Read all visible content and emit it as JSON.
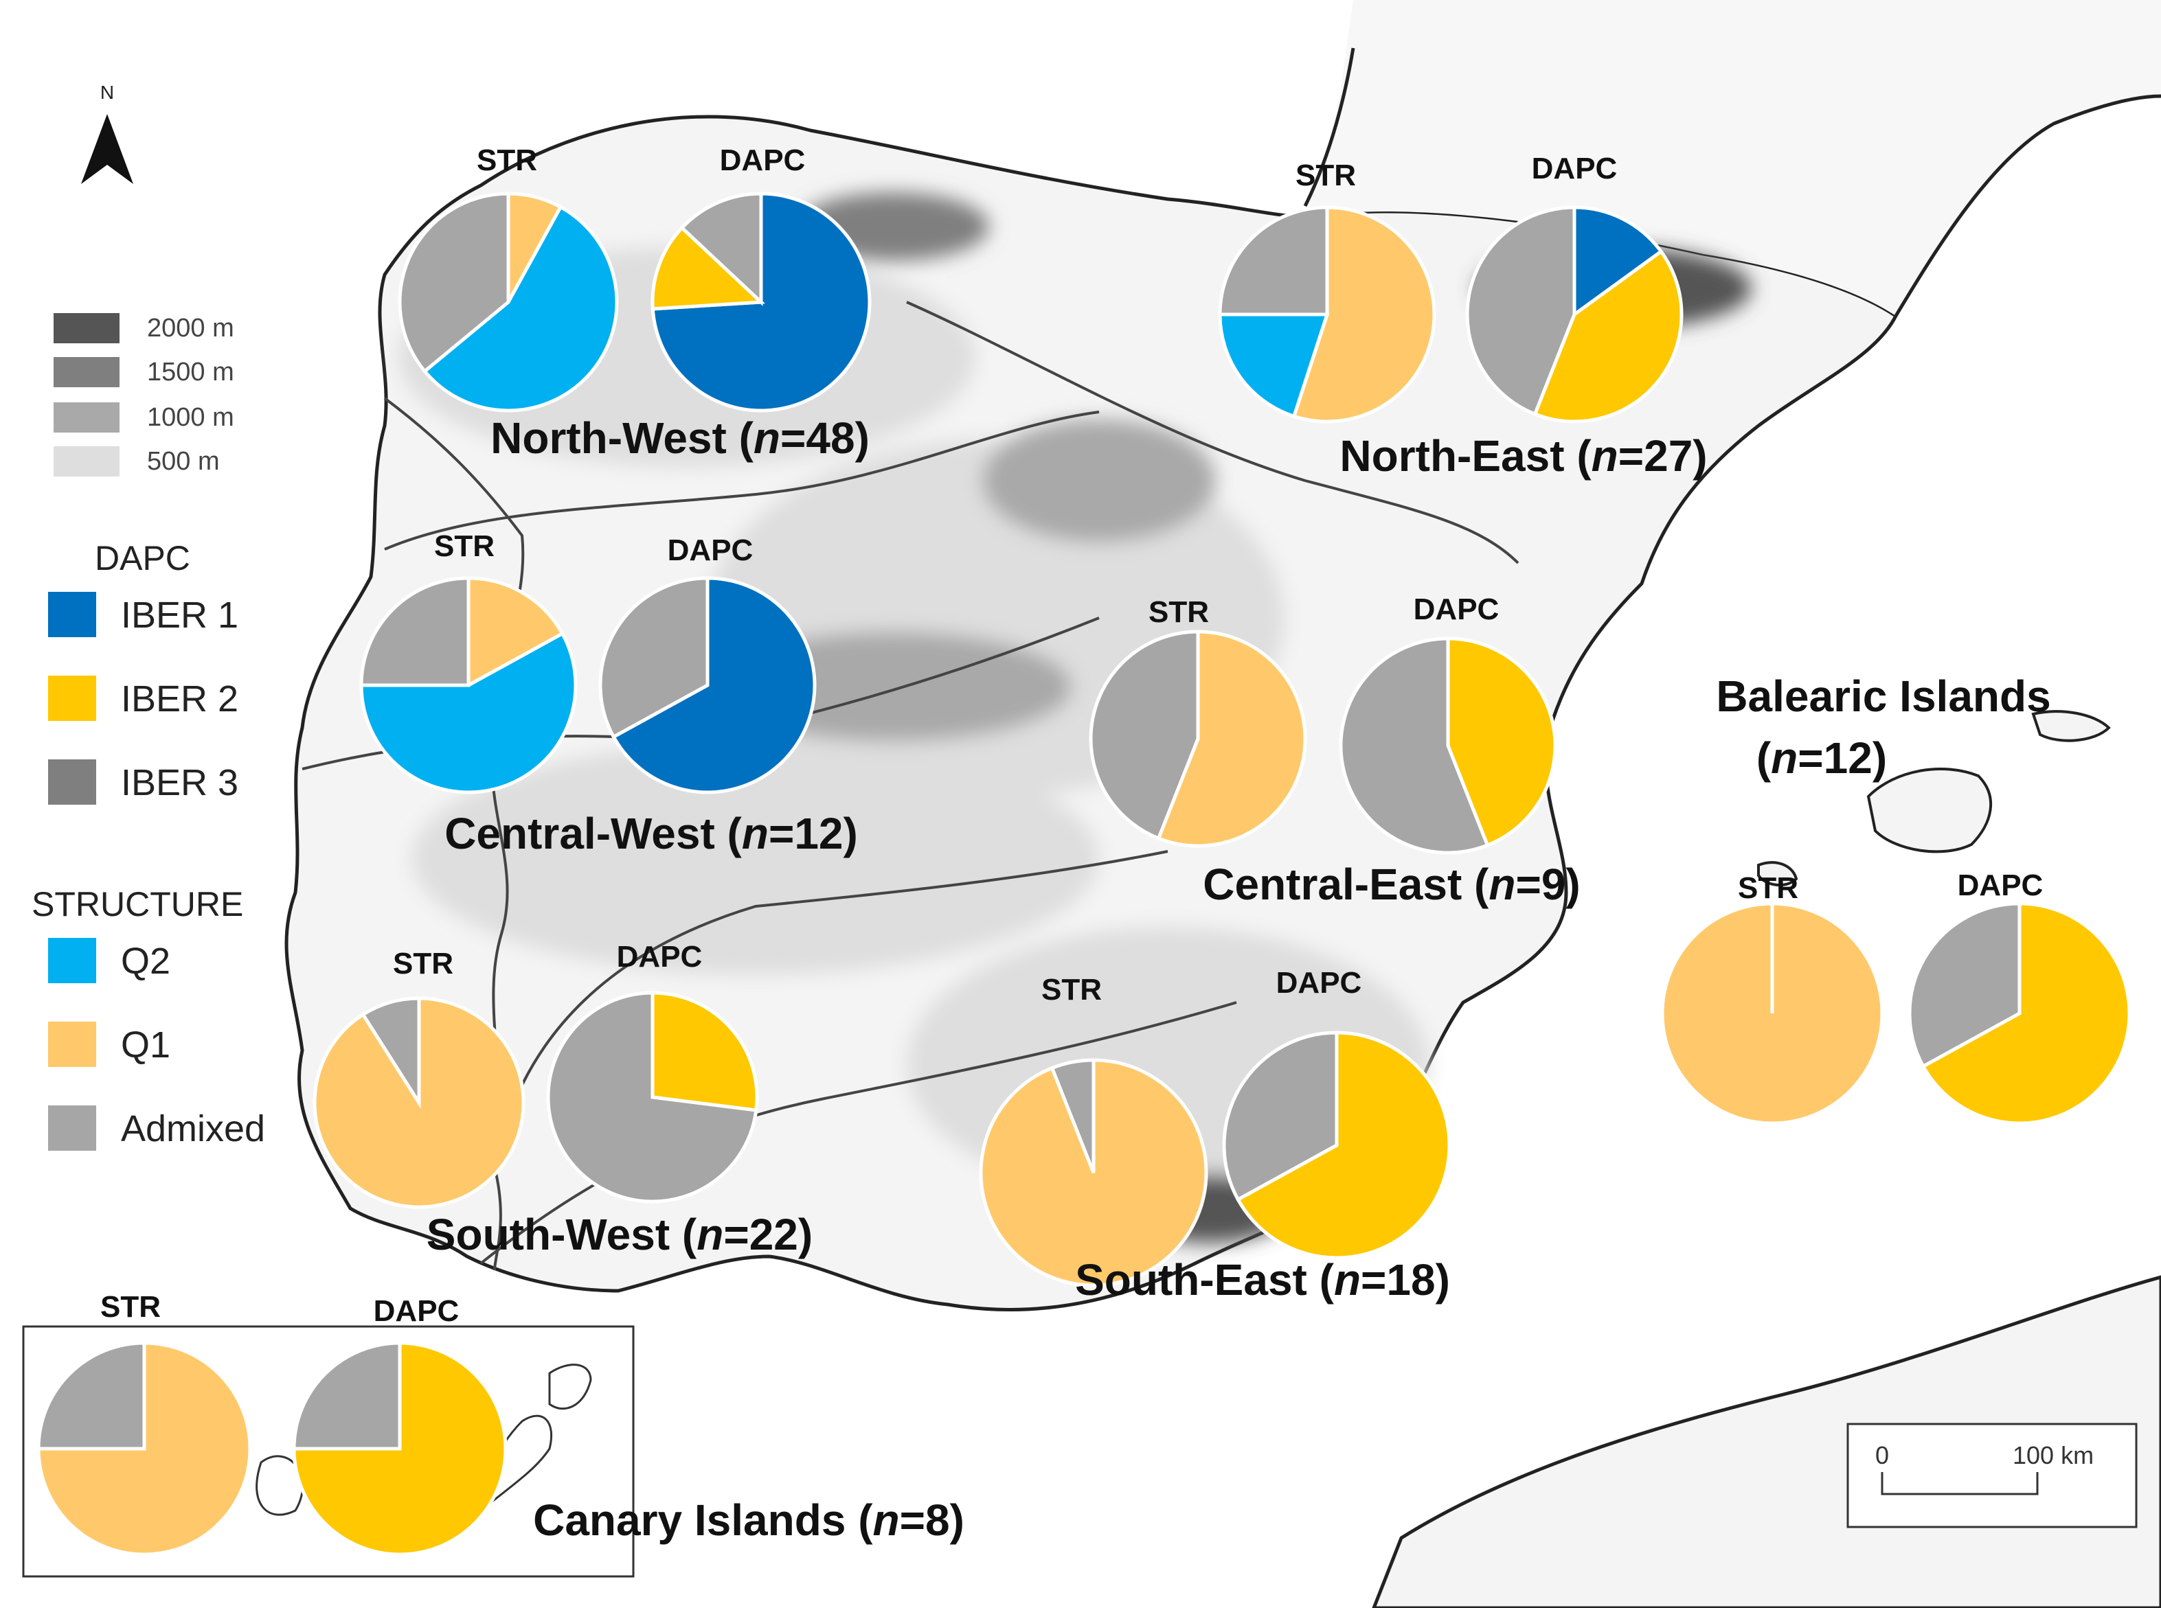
{
  "colors": {
    "IBER 1": "#0070C0",
    "IBER 2": "#FFC800",
    "IBER 3": "#7F7F7F",
    "Q2": "#00B0F0",
    "Q1": "#FFC96B",
    "Admixed": "#A6A6A6",
    "elev_2000": "#555555",
    "elev_1500": "#7F7F7F",
    "elev_1000": "#A9A9A9",
    "elev_500": "#DEDEDE"
  },
  "north_arrow": {
    "label": "N",
    "icon": "north-arrow-icon"
  },
  "legend": {
    "elevation": [
      "2000 m",
      "1500 m",
      "1000 m",
      "500 m"
    ],
    "dapc_title": "DAPC",
    "dapc_items": [
      "IBER 1",
      "IBER 2",
      "IBER 3"
    ],
    "structure_title": "STRUCTURE",
    "structure_items": [
      "Q2",
      "Q1",
      "Admixed"
    ]
  },
  "scale_bar": {
    "start": "0",
    "end": "100 km"
  },
  "pie_labels": {
    "str": "STR",
    "dapc": "DAPC"
  },
  "chart_data": {
    "type": "pie",
    "note_order": "slices listed clockwise from 12 o'clock",
    "regions": [
      {
        "name": "North-West",
        "n": "48",
        "str": [
          {
            "k": "Q1",
            "v": 0.08
          },
          {
            "k": "Q2",
            "v": 0.56
          },
          {
            "k": "Admixed",
            "v": 0.36
          }
        ],
        "dapc": [
          {
            "k": "IBER 1",
            "v": 0.74
          },
          {
            "k": "IBER 2",
            "v": 0.13
          },
          {
            "k": "Admixed",
            "v": 0.13
          }
        ]
      },
      {
        "name": "North-East",
        "n": "27",
        "str": [
          {
            "k": "Q1",
            "v": 0.55
          },
          {
            "k": "Q2",
            "v": 0.2
          },
          {
            "k": "Admixed",
            "v": 0.25
          }
        ],
        "dapc": [
          {
            "k": "IBER 1",
            "v": 0.15
          },
          {
            "k": "IBER 2",
            "v": 0.41
          },
          {
            "k": "Admixed",
            "v": 0.44
          }
        ]
      },
      {
        "name": "Central-West",
        "n": "12",
        "str": [
          {
            "k": "Q1",
            "v": 0.17
          },
          {
            "k": "Q2",
            "v": 0.58
          },
          {
            "k": "Admixed",
            "v": 0.25
          }
        ],
        "dapc": [
          {
            "k": "IBER 1",
            "v": 0.67
          },
          {
            "k": "Admixed",
            "v": 0.33
          }
        ]
      },
      {
        "name": "Central-East",
        "n": "9",
        "str": [
          {
            "k": "Q1",
            "v": 0.56
          },
          {
            "k": "Admixed",
            "v": 0.44
          }
        ],
        "dapc": [
          {
            "k": "IBER 2",
            "v": 0.44
          },
          {
            "k": "Admixed",
            "v": 0.56
          }
        ]
      },
      {
        "name": "South-West",
        "n": "22",
        "str": [
          {
            "k": "Q1",
            "v": 0.91
          },
          {
            "k": "Admixed",
            "v": 0.09
          }
        ],
        "dapc": [
          {
            "k": "IBER 2",
            "v": 0.27
          },
          {
            "k": "Admixed",
            "v": 0.73
          }
        ]
      },
      {
        "name": "South-East",
        "n": "18",
        "str": [
          {
            "k": "Q1",
            "v": 0.94
          },
          {
            "k": "Admixed",
            "v": 0.06
          }
        ],
        "dapc": [
          {
            "k": "IBER 2",
            "v": 0.67
          },
          {
            "k": "Admixed",
            "v": 0.33
          }
        ]
      },
      {
        "name": "Balearic Islands",
        "n": "12",
        "str": [
          {
            "k": "Q1",
            "v": 1.0
          }
        ],
        "dapc": [
          {
            "k": "IBER 2",
            "v": 0.67
          },
          {
            "k": "Admixed",
            "v": 0.33
          }
        ]
      },
      {
        "name": "Canary Islands",
        "n": "8",
        "str": [
          {
            "k": "Q1",
            "v": 0.75
          },
          {
            "k": "Admixed",
            "v": 0.25
          }
        ],
        "dapc": [
          {
            "k": "IBER 2",
            "v": 0.75
          },
          {
            "k": "Admixed",
            "v": 0.25
          }
        ]
      }
    ]
  }
}
